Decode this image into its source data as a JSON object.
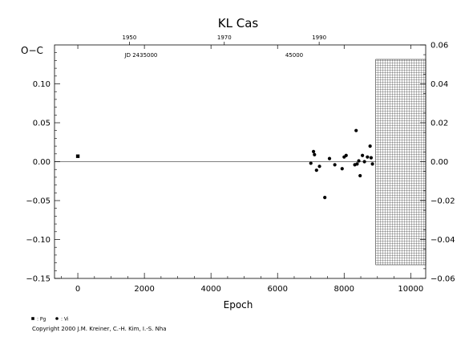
{
  "chart_data": {
    "type": "scatter",
    "title": "KL Cas",
    "xlabel": "Epoch",
    "ylabel": "O−C",
    "xlim": [
      -700,
      10450
    ],
    "ylim": [
      -0.15,
      0.15
    ],
    "x_ticks": [
      0,
      2000,
      4000,
      6000,
      8000,
      10000
    ],
    "y_ticks": [
      0.1,
      0.05,
      0.0,
      -0.05,
      -0.1,
      -0.15
    ],
    "y_tick_labels": [
      "0.10",
      "0.05",
      "0.00",
      "−0.05",
      "−0.10",
      "−0.15"
    ],
    "y2_ticks": [
      0.06,
      0.04,
      0.02,
      0.0,
      -0.02,
      -0.04,
      -0.06
    ],
    "y2_tick_labels": [
      "0.06",
      "0.04",
      "0.02",
      "0.00",
      "−0.02",
      "−0.04",
      "−0.06"
    ],
    "top_axis": {
      "year_ticks": [
        {
          "label": "1950",
          "epoch": 1550
        },
        {
          "label": "1970",
          "epoch": 4400
        },
        {
          "label": "1990",
          "epoch": 7250
        }
      ],
      "jd_labels": [
        {
          "label": "JD 2435000",
          "epoch": 1900
        },
        {
          "label": "45000",
          "epoch": 6500
        }
      ]
    },
    "grid": false,
    "hatched_region": {
      "x_from": 8950,
      "x_to": 10450,
      "note": "future epochs"
    },
    "zero_line": 0.0,
    "series": [
      {
        "name": "Pg",
        "marker": "square",
        "points": [
          [
            0,
            0.007
          ]
        ]
      },
      {
        "name": "Vi",
        "marker": "circle",
        "points": [
          [
            7000,
            -0.002
          ],
          [
            7080,
            0.013
          ],
          [
            7110,
            0.009
          ],
          [
            7170,
            -0.011
          ],
          [
            7260,
            -0.006
          ],
          [
            7420,
            -0.046
          ],
          [
            7560,
            0.004
          ],
          [
            7720,
            -0.004
          ],
          [
            7940,
            -0.009
          ],
          [
            8000,
            0.006
          ],
          [
            8060,
            0.008
          ],
          [
            8320,
            -0.004
          ],
          [
            8360,
            0.04
          ],
          [
            8390,
            -0.003
          ],
          [
            8440,
            0.001
          ],
          [
            8480,
            -0.018
          ],
          [
            8550,
            0.008
          ],
          [
            8610,
            0.0
          ],
          [
            8700,
            0.006
          ],
          [
            8780,
            0.02
          ],
          [
            8810,
            0.005
          ],
          [
            8850,
            -0.003
          ]
        ]
      }
    ],
    "legend": {
      "placement": "bottom-left",
      "items": [
        {
          "symbol": "square",
          "label": ": Pg"
        },
        {
          "symbol": "circle",
          "label": ": Vi"
        }
      ]
    }
  },
  "footer": {
    "copyright": "Copyright 2000 J.M. Kreiner, C.-H. Kim, I.-S. Nha"
  }
}
